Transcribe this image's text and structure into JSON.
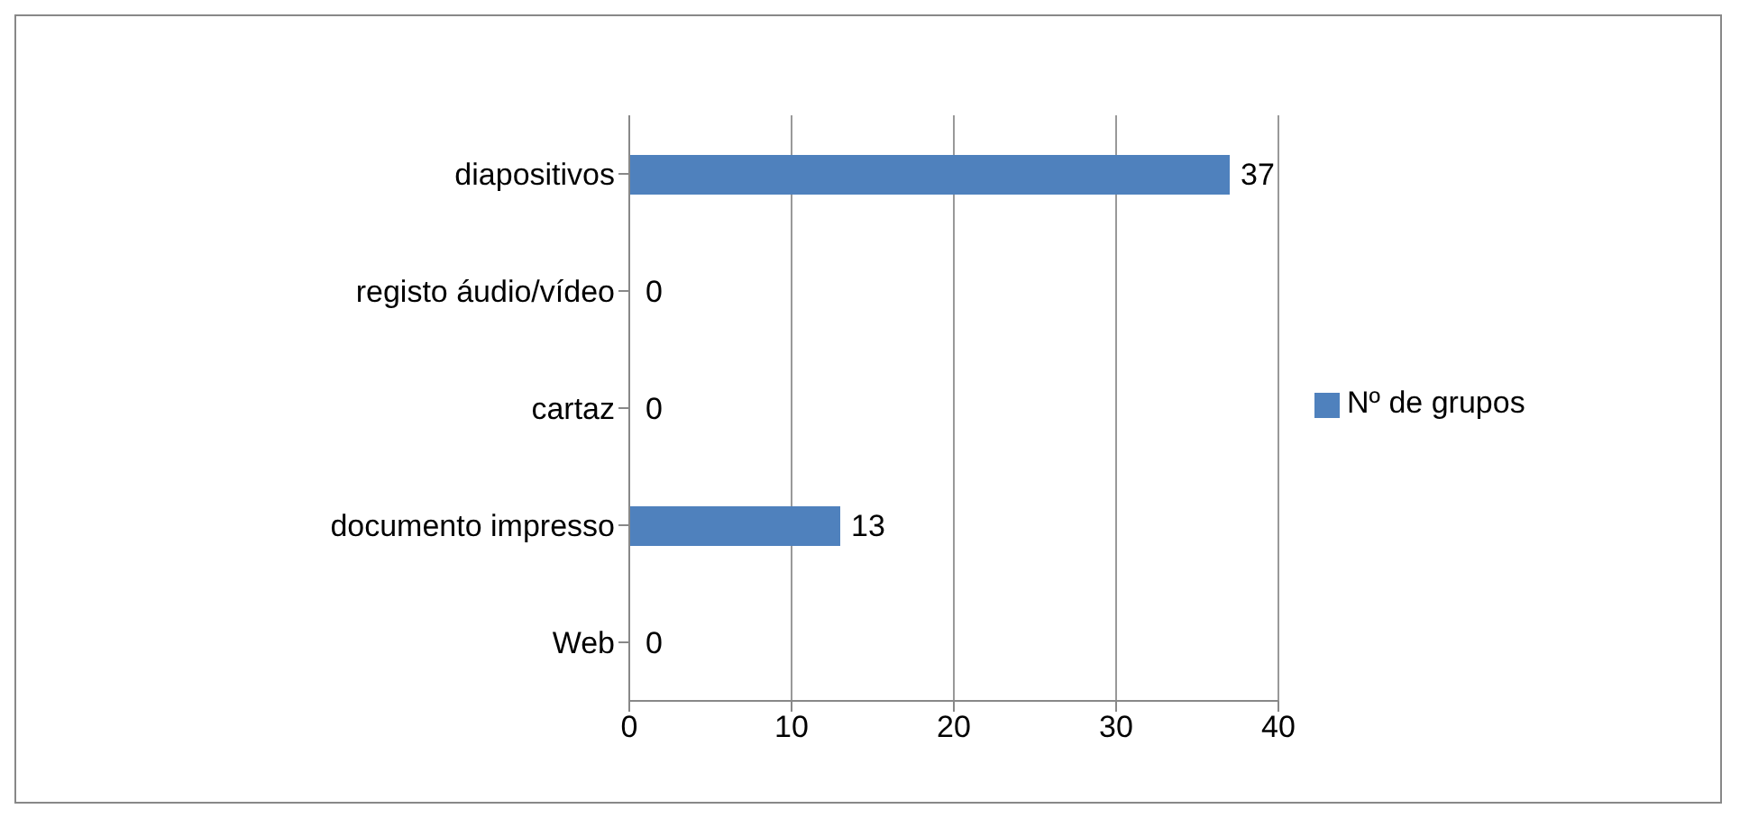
{
  "chart_data": {
    "type": "bar",
    "orientation": "horizontal",
    "categories": [
      "diapositivos",
      "registo áudio/vídeo",
      "cartaz",
      "documento impresso",
      "Web"
    ],
    "series": [
      {
        "name": "Nº de grupos",
        "color": "#4f81bd",
        "values": [
          37,
          0,
          0,
          13,
          0
        ]
      }
    ],
    "xlim": [
      0,
      40
    ],
    "xticks": [
      0,
      10,
      20,
      30,
      40
    ],
    "grid": "x",
    "legend": "right",
    "data_labels": true
  }
}
